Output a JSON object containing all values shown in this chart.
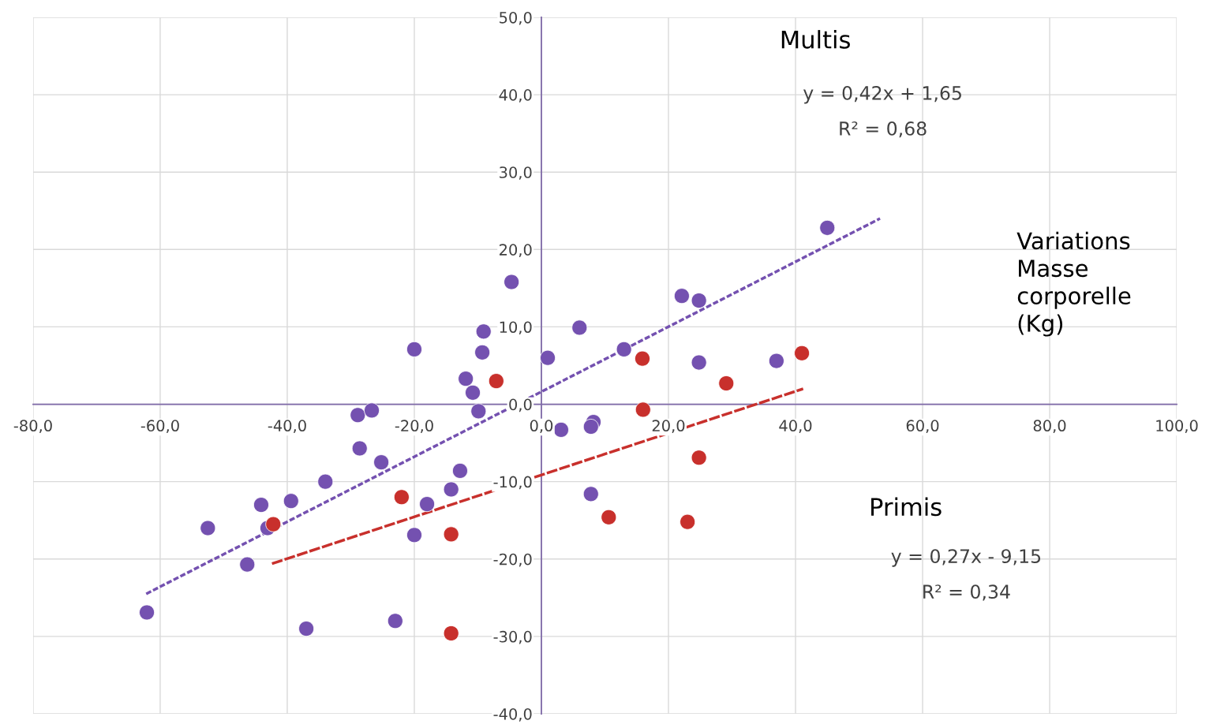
{
  "chart_data": {
    "type": "scatter",
    "ylabel": "Variations Masse corporelle (Kg)",
    "annotations": [
      "y = 0,42x + 1,65",
      "R² = 0,68",
      "y = 0,27x - 9,15",
      "R² = 0,34"
    ],
    "xlim": [
      -80,
      100
    ],
    "xticks": [
      {
        "value": -80,
        "label": "-80,0"
      },
      {
        "value": -60,
        "label": "-60,0"
      },
      {
        "value": -40,
        "label": "-40,0"
      },
      {
        "value": -20,
        "label": "-20,0"
      },
      {
        "value": 0,
        "label": "0,0"
      },
      {
        "value": 20,
        "label": "20,0"
      },
      {
        "value": 40,
        "label": "40,0"
      },
      {
        "value": 60,
        "label": "60,0"
      },
      {
        "value": 80,
        "label": "80,0"
      },
      {
        "value": 100,
        "label": "100,0"
      }
    ],
    "ylim": [
      -40,
      50
    ],
    "yticks": [
      {
        "value": -40,
        "label": "-40,0"
      },
      {
        "value": -30,
        "label": "-30,0"
      },
      {
        "value": -20,
        "label": "-20,0"
      },
      {
        "value": -10,
        "label": "-10,0"
      },
      {
        "value": 0,
        "label": "0,0"
      },
      {
        "value": 10,
        "label": "10,0"
      },
      {
        "value": 20,
        "label": "20,0"
      },
      {
        "value": 30,
        "label": "30,0"
      },
      {
        "value": 40,
        "label": "40,0"
      },
      {
        "value": 50,
        "label": "50,0"
      }
    ],
    "grid": true,
    "legend": false,
    "series": [
      {
        "name": "Multis",
        "marker": "circle",
        "color": "#7451b0",
        "x": [
          45.0,
          -4.7,
          22.1,
          24.8,
          -9.1,
          6.0,
          -20.0,
          -9.3,
          13.0,
          1.0,
          24.8,
          37.0,
          -11.9,
          -10.8,
          -9.9,
          -28.9,
          -26.7,
          3.1,
          8.2,
          7.8,
          -28.6,
          -25.2,
          -12.8,
          -34.0,
          -14.2,
          7.8,
          -44.1,
          -39.4,
          -18.0,
          -52.5,
          -43.1,
          -20.0,
          -46.3,
          -62.1,
          -37.0,
          -23.0
        ],
        "values": [
          22.8,
          15.8,
          14.0,
          13.4,
          9.4,
          9.9,
          7.1,
          6.7,
          7.1,
          6.0,
          5.4,
          5.6,
          3.3,
          1.5,
          -0.9,
          -1.4,
          -0.8,
          -3.3,
          -2.3,
          -2.9,
          -5.7,
          -7.5,
          -8.6,
          -10.0,
          -11.0,
          -11.6,
          -13.0,
          -12.5,
          -12.9,
          -16.0,
          -16.0,
          -16.9,
          -20.7,
          -26.9,
          -29.0,
          -28.0
        ]
      },
      {
        "name": "Primis",
        "marker": "circle",
        "color": "#c8302c",
        "x": [
          41.0,
          15.9,
          -7.1,
          29.1,
          16.0,
          24.8,
          -22.0,
          -42.2,
          10.6,
          23.0,
          -14.2,
          -14.2
        ],
        "values": [
          6.6,
          5.9,
          3.0,
          2.7,
          -0.7,
          -6.9,
          -12.0,
          -15.5,
          -14.6,
          -15.2,
          -16.8,
          -29.6
        ]
      },
      {
        "type": "line",
        "color": "#7451b0",
        "line_style": "dotted",
        "x": [
          -62.2,
          53.3
        ],
        "values": [
          -24.5,
          24.0
        ]
      },
      {
        "type": "line",
        "color": "#c8302c",
        "line_style": "dashed",
        "x": [
          -42.4,
          41.2
        ],
        "values": [
          -20.6,
          2.0
        ]
      }
    ]
  }
}
